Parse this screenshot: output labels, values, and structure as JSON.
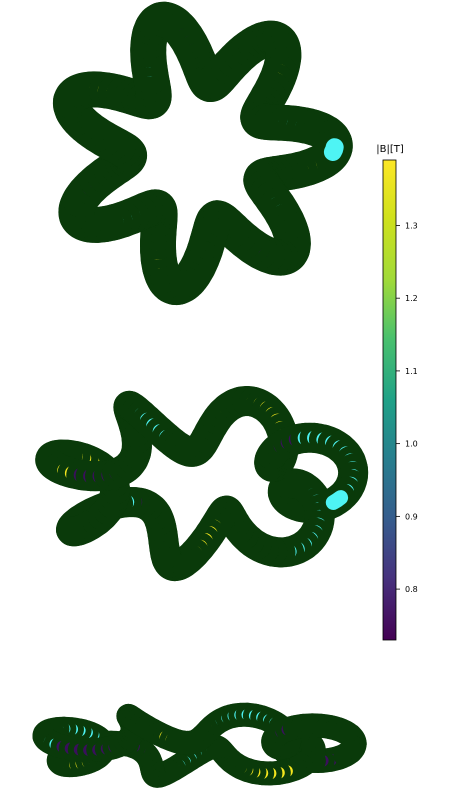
{
  "colorbar": {
    "label": "|B|[T]",
    "ticks": [
      "1.3",
      "1.2",
      "1.1",
      "1.0",
      "0.9",
      "0.8"
    ],
    "tick_values": [
      1.3,
      1.2,
      1.1,
      1.0,
      0.9,
      0.8
    ],
    "range": [
      0.73,
      1.39
    ],
    "colormap": "viridis"
  },
  "colors": {
    "yellow": "#f4e61e",
    "cyan": "#4ef4f4",
    "purple": "#3a0f5c",
    "dark_green": "#0a3a0a"
  },
  "panels": [
    "top-view",
    "oblique-view",
    "side-view"
  ]
}
